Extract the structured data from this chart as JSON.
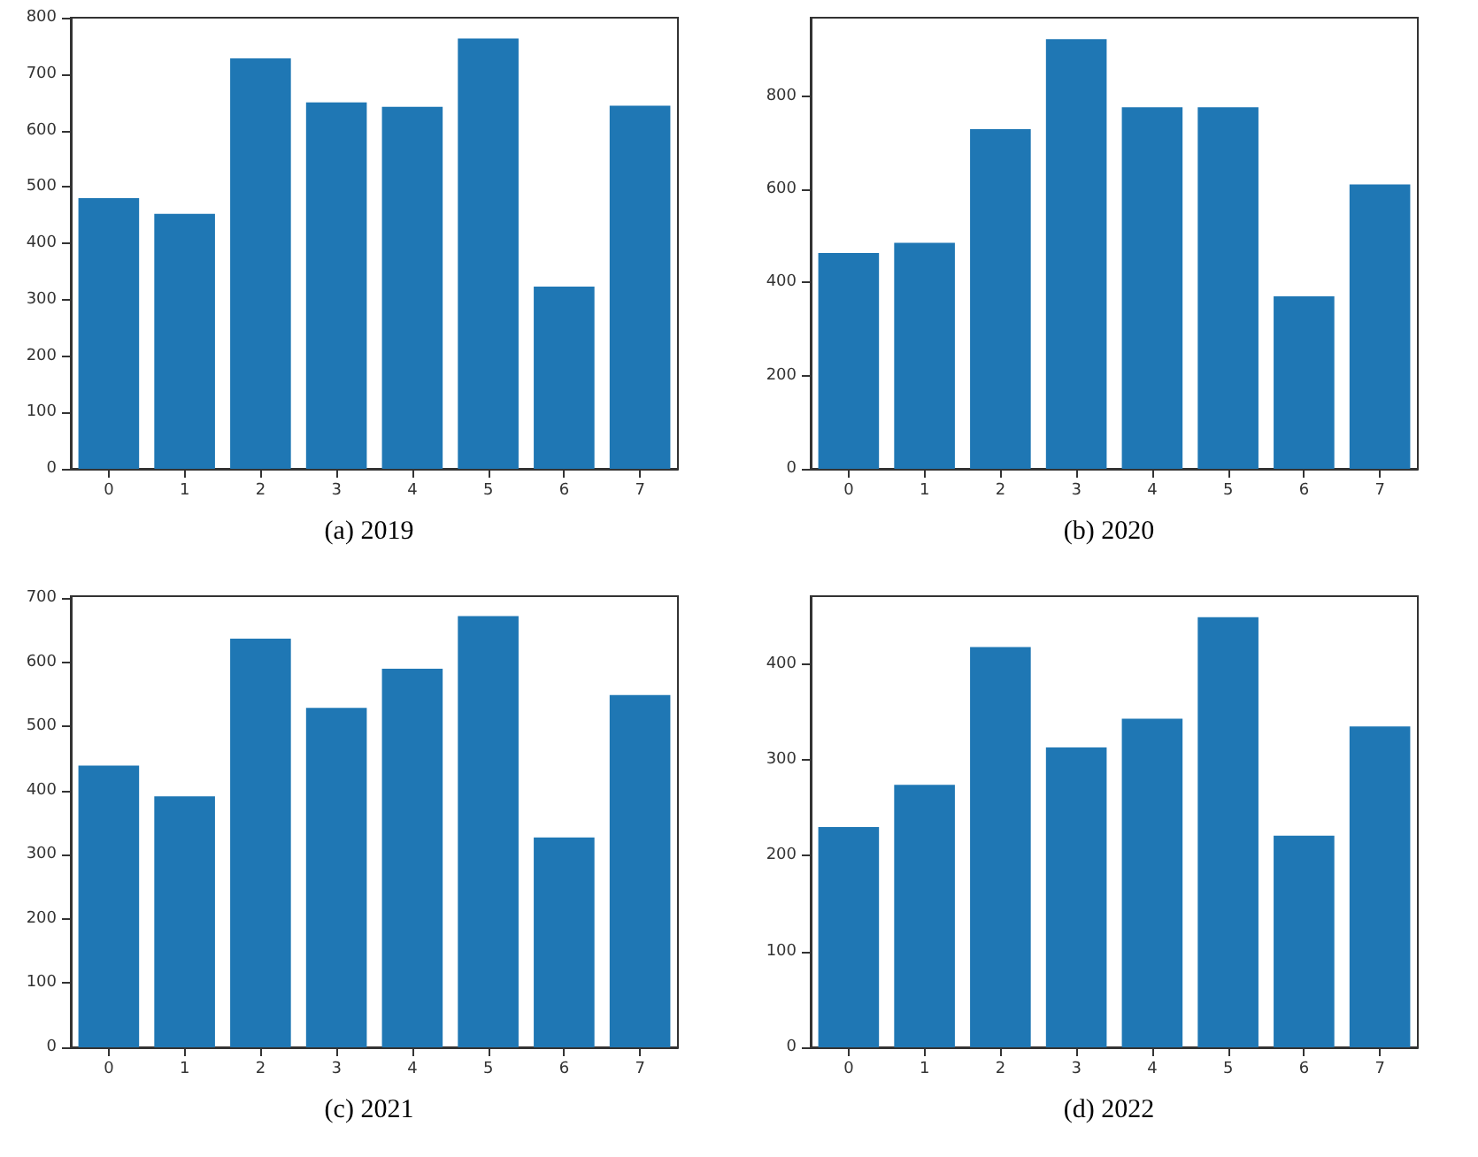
{
  "chart_data": [
    {
      "type": "bar",
      "title": "(a) 2019",
      "categories": [
        "0",
        "1",
        "2",
        "3",
        "4",
        "5",
        "6",
        "7"
      ],
      "values": [
        480,
        452,
        728,
        650,
        642,
        763,
        323,
        644
      ],
      "color": "#1f77b4",
      "ylim": [
        0,
        800
      ],
      "yticks": [
        0,
        100,
        200,
        300,
        400,
        500,
        600,
        700,
        800
      ],
      "grid": false
    },
    {
      "type": "bar",
      "title": "(b) 2020",
      "categories": [
        "0",
        "1",
        "2",
        "3",
        "4",
        "5",
        "6",
        "7"
      ],
      "values": [
        463,
        485,
        729,
        922,
        776,
        776,
        370,
        610
      ],
      "color": "#1f77b4",
      "ylim": [
        0,
        968
      ],
      "yticks": [
        0,
        200,
        400,
        600,
        800
      ],
      "grid": false
    },
    {
      "type": "bar",
      "title": "(c) 2021",
      "categories": [
        "0",
        "1",
        "2",
        "3",
        "4",
        "5",
        "6",
        "7"
      ],
      "values": [
        439,
        391,
        637,
        529,
        590,
        672,
        327,
        549
      ],
      "color": "#1f77b4",
      "ylim": [
        0,
        703
      ],
      "yticks": [
        0,
        100,
        200,
        300,
        400,
        500,
        600,
        700
      ],
      "grid": false
    },
    {
      "type": "bar",
      "title": "(d) 2022",
      "categories": [
        "0",
        "1",
        "2",
        "3",
        "4",
        "5",
        "6",
        "7"
      ],
      "values": [
        230,
        274,
        418,
        313,
        343,
        449,
        221,
        335
      ],
      "color": "#1f77b4",
      "ylim": [
        0,
        471
      ],
      "yticks": [
        0,
        100,
        200,
        300,
        400
      ],
      "grid": false
    }
  ]
}
